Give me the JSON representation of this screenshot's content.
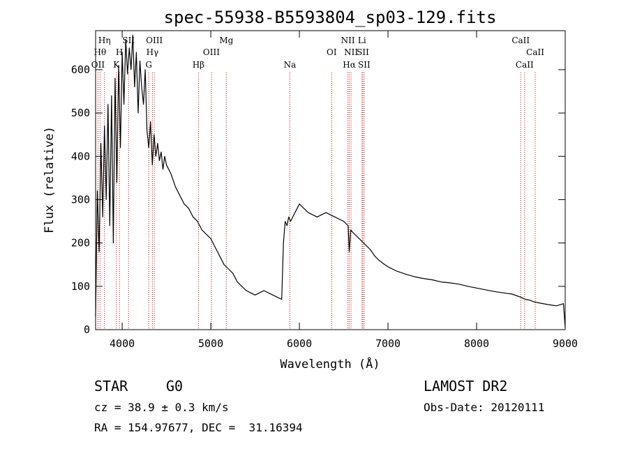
{
  "chart_data": {
    "type": "line",
    "title": "spec-55938-B5593804_sp03-129.fits",
    "xlabel": "Wavelength (Å)",
    "ylabel": "Flux (relative)",
    "xlim": [
      3700,
      9000
    ],
    "ylim": [
      0,
      690
    ],
    "xticks": [
      4000,
      5000,
      6000,
      7000,
      8000,
      9000
    ],
    "yticks": [
      0,
      100,
      200,
      300,
      400,
      500,
      600
    ],
    "grid": false,
    "series": [
      {
        "x": [
          3700,
          3720,
          3740,
          3760,
          3780,
          3800,
          3820,
          3840,
          3860,
          3880,
          3900,
          3920,
          3940,
          3960,
          3980,
          4000,
          4020,
          4040,
          4060,
          4080,
          4100,
          4120,
          4140,
          4160,
          4180,
          4200,
          4220,
          4240,
          4260,
          4280,
          4300,
          4320,
          4340,
          4360,
          4380,
          4400,
          4420,
          4440,
          4460,
          4480,
          4500,
          4550,
          4600,
          4650,
          4700,
          4750,
          4800,
          4850,
          4900,
          4950,
          5000,
          5050,
          5100,
          5150,
          5200,
          5250,
          5300,
          5350,
          5400,
          5450,
          5500,
          5550,
          5600,
          5650,
          5700,
          5750,
          5800,
          5820,
          5840,
          5860,
          5880,
          5900,
          5950,
          6000,
          6050,
          6100,
          6150,
          6200,
          6250,
          6300,
          6350,
          6400,
          6450,
          6500,
          6550,
          6563,
          6580,
          6600,
          6650,
          6700,
          6750,
          6800,
          6850,
          6900,
          6950,
          7000,
          7100,
          7200,
          7300,
          7400,
          7500,
          7600,
          7700,
          7800,
          7900,
          8000,
          8100,
          8200,
          8300,
          8400,
          8500,
          8550,
          8600,
          8650,
          8700,
          8800,
          8900,
          8950,
          8980,
          9000
        ],
        "y": [
          30,
          320,
          180,
          430,
          260,
          470,
          300,
          520,
          240,
          540,
          200,
          580,
          340,
          610,
          420,
          640,
          520,
          670,
          590,
          650,
          600,
          680,
          560,
          640,
          500,
          620,
          560,
          520,
          600,
          460,
          420,
          480,
          380,
          450,
          400,
          430,
          390,
          410,
          370,
          400,
          380,
          360,
          330,
          310,
          290,
          280,
          260,
          250,
          230,
          220,
          210,
          190,
          170,
          150,
          140,
          130,
          110,
          100,
          90,
          85,
          80,
          85,
          90,
          85,
          80,
          75,
          70,
          200,
          250,
          240,
          260,
          250,
          270,
          290,
          280,
          270,
          265,
          260,
          265,
          270,
          265,
          260,
          255,
          250,
          240,
          180,
          230,
          225,
          215,
          205,
          195,
          185,
          170,
          160,
          152,
          145,
          135,
          128,
          122,
          118,
          115,
          110,
          108,
          105,
          100,
          96,
          92,
          88,
          85,
          82,
          75,
          70,
          68,
          64,
          62,
          58,
          55,
          58,
          60,
          5
        ]
      }
    ],
    "lines": [
      {
        "x": 3727,
        "row": 3,
        "label": "OII"
      },
      {
        "x": 3750,
        "row": 2,
        "label": "Hθ"
      },
      {
        "x": 3800,
        "row": 1,
        "label": "Hη"
      },
      {
        "x": 3934,
        "row": 3,
        "label": "K"
      },
      {
        "x": 3969,
        "row": 2,
        "label": "H"
      },
      {
        "x": 4072,
        "row": 1,
        "label": "SII"
      },
      {
        "x": 4300,
        "row": 3,
        "label": "G"
      },
      {
        "x": 4341,
        "row": 2,
        "label": "Hγ"
      },
      {
        "x": 4363,
        "row": 1,
        "label": "OIII"
      },
      {
        "x": 4861,
        "row": 3,
        "label": "Hβ"
      },
      {
        "x": 5007,
        "row": 2,
        "label": "OIII"
      },
      {
        "x": 5175,
        "row": 1,
        "label": "Mg"
      },
      {
        "x": 5893,
        "row": 3,
        "label": "Na"
      },
      {
        "x": 6364,
        "row": 2,
        "label": "OI"
      },
      {
        "x": 6548,
        "row": 1,
        "label": "NII"
      },
      {
        "x": 6563,
        "row": 3,
        "label": "Hα"
      },
      {
        "x": 6583,
        "row": 2,
        "label": "NII"
      },
      {
        "x": 6707,
        "row": 1,
        "label": "Li"
      },
      {
        "x": 6716,
        "row": 2,
        "label": "SII"
      },
      {
        "x": 6731,
        "row": 3,
        "label": "SII"
      },
      {
        "x": 8498,
        "row": 1,
        "label": "CaII"
      },
      {
        "x": 8542,
        "row": 3,
        "label": "CaII"
      },
      {
        "x": 8662,
        "row": 2,
        "label": "CaII"
      }
    ]
  },
  "info": {
    "class": "STAR",
    "subclass": "G0",
    "survey": "LAMOST DR2",
    "cz": "cz = 38.9 ± 0.3 km/s",
    "obs_date": "Obs-Date: 20120111",
    "radec": "RA = 154.97677, DEC =  31.16394"
  }
}
